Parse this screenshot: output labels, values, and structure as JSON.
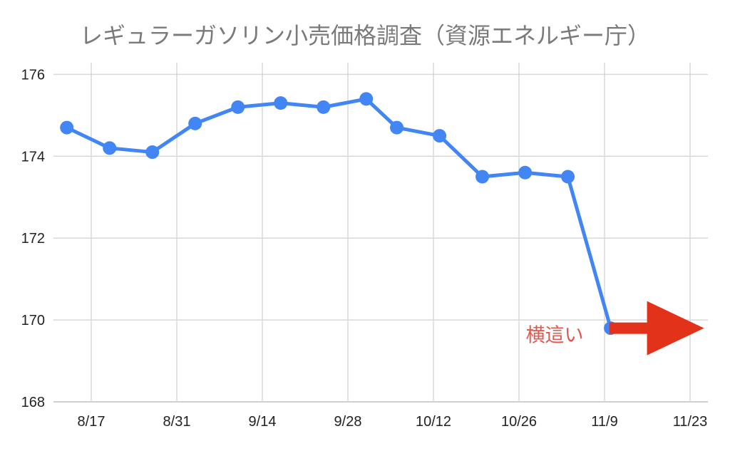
{
  "chart": {
    "colors": {
      "line": "#4285f4",
      "marker": "#4285f4",
      "arrow": "#e2331a",
      "annotation_text": "#e4564d",
      "grid": "#d8d8d8",
      "axis_line": "#c0c0c0",
      "axis_text": "#222222",
      "title_text": "#7a7a7a",
      "background": "#ffffff"
    }
  },
  "chart_data": {
    "type": "line",
    "title": "レギュラーガソリン小売価格調査（資源エネルギー庁）",
    "xlabel": "",
    "ylabel": "",
    "grid": true,
    "legend": "none",
    "ylim": [
      168,
      176.3
    ],
    "y_ticks": [
      176,
      174,
      172,
      170,
      168
    ],
    "x_ticks": [
      "8/17",
      "8/31",
      "9/14",
      "9/28",
      "10/12",
      "10/26",
      "11/9",
      "11/23"
    ],
    "points": [
      {
        "x": "8/13",
        "y": 174.7
      },
      {
        "x": "8/20",
        "y": 174.2
      },
      {
        "x": "8/27",
        "y": 174.1
      },
      {
        "x": "9/3",
        "y": 174.8
      },
      {
        "x": "9/10",
        "y": 175.2
      },
      {
        "x": "9/17",
        "y": 175.3
      },
      {
        "x": "9/24",
        "y": 175.2
      },
      {
        "x": "10/1",
        "y": 175.4
      },
      {
        "x": "10/6",
        "y": 174.7
      },
      {
        "x": "10/13",
        "y": 174.5
      },
      {
        "x": "10/20",
        "y": 173.5
      },
      {
        "x": "10/27",
        "y": 173.6
      },
      {
        "x": "11/3",
        "y": 173.5
      },
      {
        "x": "11/10",
        "y": 169.8
      }
    ],
    "annotations": [
      {
        "type": "text",
        "text": "横這い",
        "near": "last-point"
      },
      {
        "type": "arrow-right",
        "near": "last-point"
      }
    ]
  }
}
